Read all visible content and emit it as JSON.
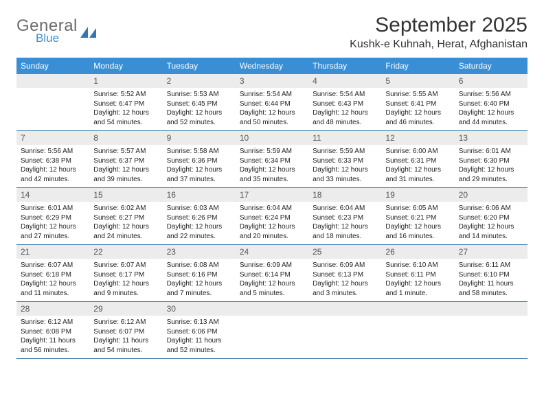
{
  "brand": {
    "main": "General",
    "sub": "Blue"
  },
  "title": "September 2025",
  "location": "Kushk-e Kuhnah, Herat, Afghanistan",
  "colors": {
    "header_bg": "#3a8fd4",
    "header_text": "#ffffff",
    "daynum_bg": "#ececec",
    "daynum_text": "#555555",
    "body_text": "#222222",
    "row_border": "#3a7aa8",
    "logo_gray": "#6b6b6b",
    "logo_blue": "#3a8fd4",
    "background": "#ffffff"
  },
  "typography": {
    "title_fontsize": 30,
    "location_fontsize": 16,
    "weekday_fontsize": 12,
    "daynum_fontsize": 12,
    "body_fontsize": 10,
    "logo_main_fontsize": 24,
    "logo_sub_fontsize": 17
  },
  "weekdays": [
    "Sunday",
    "Monday",
    "Tuesday",
    "Wednesday",
    "Thursday",
    "Friday",
    "Saturday"
  ],
  "weeks": [
    [
      {
        "num": "",
        "lines": []
      },
      {
        "num": "1",
        "lines": [
          "Sunrise: 5:52 AM",
          "Sunset: 6:47 PM",
          "Daylight: 12 hours and 54 minutes."
        ]
      },
      {
        "num": "2",
        "lines": [
          "Sunrise: 5:53 AM",
          "Sunset: 6:45 PM",
          "Daylight: 12 hours and 52 minutes."
        ]
      },
      {
        "num": "3",
        "lines": [
          "Sunrise: 5:54 AM",
          "Sunset: 6:44 PM",
          "Daylight: 12 hours and 50 minutes."
        ]
      },
      {
        "num": "4",
        "lines": [
          "Sunrise: 5:54 AM",
          "Sunset: 6:43 PM",
          "Daylight: 12 hours and 48 minutes."
        ]
      },
      {
        "num": "5",
        "lines": [
          "Sunrise: 5:55 AM",
          "Sunset: 6:41 PM",
          "Daylight: 12 hours and 46 minutes."
        ]
      },
      {
        "num": "6",
        "lines": [
          "Sunrise: 5:56 AM",
          "Sunset: 6:40 PM",
          "Daylight: 12 hours and 44 minutes."
        ]
      }
    ],
    [
      {
        "num": "7",
        "lines": [
          "Sunrise: 5:56 AM",
          "Sunset: 6:38 PM",
          "Daylight: 12 hours and 42 minutes."
        ]
      },
      {
        "num": "8",
        "lines": [
          "Sunrise: 5:57 AM",
          "Sunset: 6:37 PM",
          "Daylight: 12 hours and 39 minutes."
        ]
      },
      {
        "num": "9",
        "lines": [
          "Sunrise: 5:58 AM",
          "Sunset: 6:36 PM",
          "Daylight: 12 hours and 37 minutes."
        ]
      },
      {
        "num": "10",
        "lines": [
          "Sunrise: 5:59 AM",
          "Sunset: 6:34 PM",
          "Daylight: 12 hours and 35 minutes."
        ]
      },
      {
        "num": "11",
        "lines": [
          "Sunrise: 5:59 AM",
          "Sunset: 6:33 PM",
          "Daylight: 12 hours and 33 minutes."
        ]
      },
      {
        "num": "12",
        "lines": [
          "Sunrise: 6:00 AM",
          "Sunset: 6:31 PM",
          "Daylight: 12 hours and 31 minutes."
        ]
      },
      {
        "num": "13",
        "lines": [
          "Sunrise: 6:01 AM",
          "Sunset: 6:30 PM",
          "Daylight: 12 hours and 29 minutes."
        ]
      }
    ],
    [
      {
        "num": "14",
        "lines": [
          "Sunrise: 6:01 AM",
          "Sunset: 6:29 PM",
          "Daylight: 12 hours and 27 minutes."
        ]
      },
      {
        "num": "15",
        "lines": [
          "Sunrise: 6:02 AM",
          "Sunset: 6:27 PM",
          "Daylight: 12 hours and 24 minutes."
        ]
      },
      {
        "num": "16",
        "lines": [
          "Sunrise: 6:03 AM",
          "Sunset: 6:26 PM",
          "Daylight: 12 hours and 22 minutes."
        ]
      },
      {
        "num": "17",
        "lines": [
          "Sunrise: 6:04 AM",
          "Sunset: 6:24 PM",
          "Daylight: 12 hours and 20 minutes."
        ]
      },
      {
        "num": "18",
        "lines": [
          "Sunrise: 6:04 AM",
          "Sunset: 6:23 PM",
          "Daylight: 12 hours and 18 minutes."
        ]
      },
      {
        "num": "19",
        "lines": [
          "Sunrise: 6:05 AM",
          "Sunset: 6:21 PM",
          "Daylight: 12 hours and 16 minutes."
        ]
      },
      {
        "num": "20",
        "lines": [
          "Sunrise: 6:06 AM",
          "Sunset: 6:20 PM",
          "Daylight: 12 hours and 14 minutes."
        ]
      }
    ],
    [
      {
        "num": "21",
        "lines": [
          "Sunrise: 6:07 AM",
          "Sunset: 6:18 PM",
          "Daylight: 12 hours and 11 minutes."
        ]
      },
      {
        "num": "22",
        "lines": [
          "Sunrise: 6:07 AM",
          "Sunset: 6:17 PM",
          "Daylight: 12 hours and 9 minutes."
        ]
      },
      {
        "num": "23",
        "lines": [
          "Sunrise: 6:08 AM",
          "Sunset: 6:16 PM",
          "Daylight: 12 hours and 7 minutes."
        ]
      },
      {
        "num": "24",
        "lines": [
          "Sunrise: 6:09 AM",
          "Sunset: 6:14 PM",
          "Daylight: 12 hours and 5 minutes."
        ]
      },
      {
        "num": "25",
        "lines": [
          "Sunrise: 6:09 AM",
          "Sunset: 6:13 PM",
          "Daylight: 12 hours and 3 minutes."
        ]
      },
      {
        "num": "26",
        "lines": [
          "Sunrise: 6:10 AM",
          "Sunset: 6:11 PM",
          "Daylight: 12 hours and 1 minute."
        ]
      },
      {
        "num": "27",
        "lines": [
          "Sunrise: 6:11 AM",
          "Sunset: 6:10 PM",
          "Daylight: 11 hours and 58 minutes."
        ]
      }
    ],
    [
      {
        "num": "28",
        "lines": [
          "Sunrise: 6:12 AM",
          "Sunset: 6:08 PM",
          "Daylight: 11 hours and 56 minutes."
        ]
      },
      {
        "num": "29",
        "lines": [
          "Sunrise: 6:12 AM",
          "Sunset: 6:07 PM",
          "Daylight: 11 hours and 54 minutes."
        ]
      },
      {
        "num": "30",
        "lines": [
          "Sunrise: 6:13 AM",
          "Sunset: 6:06 PM",
          "Daylight: 11 hours and 52 minutes."
        ]
      },
      {
        "num": "",
        "lines": []
      },
      {
        "num": "",
        "lines": []
      },
      {
        "num": "",
        "lines": []
      },
      {
        "num": "",
        "lines": []
      }
    ]
  ]
}
